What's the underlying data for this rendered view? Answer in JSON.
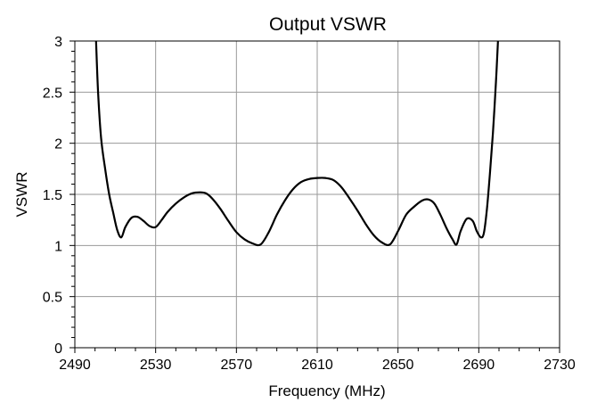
{
  "chart_data": {
    "type": "line",
    "title": "Output VSWR",
    "xlabel": "Frequency (MHz)",
    "ylabel": "VSWR",
    "xlim": [
      2490,
      2730
    ],
    "ylim": [
      0,
      3
    ],
    "grid": true,
    "x_ticks": [
      2490,
      2530,
      2570,
      2610,
      2650,
      2690,
      2730
    ],
    "y_ticks": [
      0,
      0.5,
      1,
      1.5,
      2,
      2.5,
      3
    ],
    "x_tick_labels": [
      "2490",
      "2530",
      "2570",
      "2610",
      "2650",
      "2690",
      "2730"
    ],
    "y_tick_labels": [
      "0",
      "0.5",
      "1",
      "1.5",
      "2",
      "2.5",
      "3"
    ],
    "series": [
      {
        "color": "#000000",
        "x": [
          2500.5,
          2501.5,
          2503,
          2505,
          2507,
          2509,
          2511,
          2513,
          2515,
          2518,
          2521,
          2524,
          2527,
          2530,
          2533,
          2536,
          2540,
          2544,
          2548,
          2552,
          2555,
          2558,
          2562,
          2566,
          2570,
          2574,
          2578,
          2582,
          2586,
          2590,
          2594,
          2598,
          2602,
          2606,
          2610,
          2614,
          2618,
          2622,
          2626,
          2630,
          2634,
          2638,
          2642,
          2646,
          2650,
          2654,
          2658,
          2662,
          2665,
          2668,
          2671,
          2674,
          2677,
          2679,
          2681,
          2684,
          2687,
          2689,
          2691,
          2692.5,
          2694,
          2695.5,
          2697,
          2698.5,
          2699.5
        ],
        "y": [
          3.0,
          2.5,
          2.05,
          1.75,
          1.5,
          1.32,
          1.15,
          1.08,
          1.18,
          1.27,
          1.28,
          1.24,
          1.19,
          1.18,
          1.25,
          1.33,
          1.41,
          1.47,
          1.51,
          1.52,
          1.51,
          1.46,
          1.36,
          1.24,
          1.13,
          1.06,
          1.02,
          1.01,
          1.13,
          1.3,
          1.44,
          1.55,
          1.62,
          1.65,
          1.66,
          1.66,
          1.64,
          1.57,
          1.46,
          1.34,
          1.21,
          1.1,
          1.03,
          1.01,
          1.14,
          1.3,
          1.38,
          1.44,
          1.45,
          1.41,
          1.3,
          1.17,
          1.06,
          1.01,
          1.14,
          1.26,
          1.24,
          1.14,
          1.08,
          1.12,
          1.35,
          1.7,
          2.1,
          2.6,
          3.0
        ]
      }
    ]
  }
}
